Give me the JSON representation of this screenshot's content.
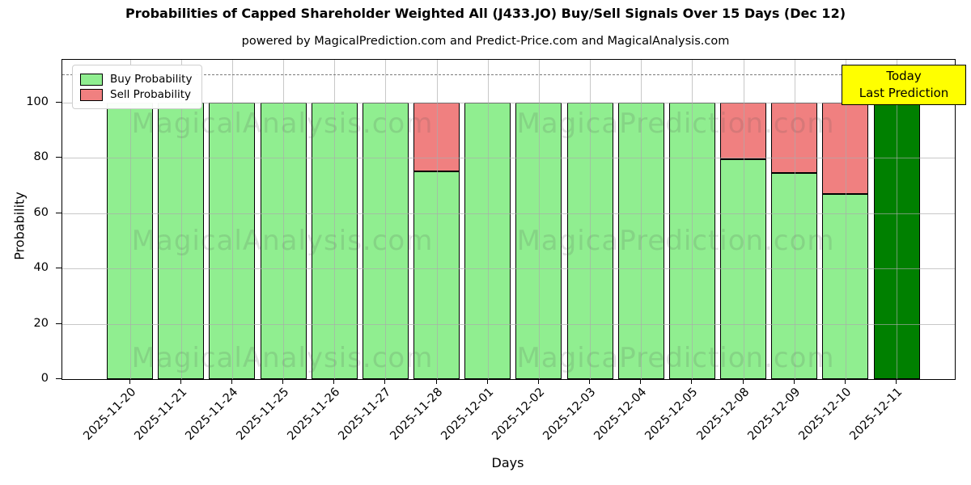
{
  "title": "Probabilities of Capped Shareholder Weighted All (J433.JO) Buy/Sell Signals Over 15 Days (Dec 12)",
  "subtitle": "powered by MagicalPrediction.com and Predict-Price.com and MagicalAnalysis.com",
  "legend": {
    "buy_label": "Buy Probability",
    "sell_label": "Sell Probability"
  },
  "annotation": {
    "line1": "Today",
    "line2": "Last Prediction",
    "background": "#ffff00"
  },
  "watermarks": [
    "MagicalAnalysis.com",
    "MagicaPrediction.com"
  ],
  "colors": {
    "buy": "#90EE90",
    "sell": "#F08080",
    "today_bar": "#008000",
    "grid": "#aaaaaa",
    "dashed_line": "#7a7a7a"
  },
  "chart_data": {
    "type": "bar",
    "stacked": true,
    "title": "Probabilities of Capped Shareholder Weighted All (J433.JO) Buy/Sell Signals Over 15 Days (Dec 12)",
    "xlabel": "Days",
    "ylabel": "Probability",
    "ylim": [
      0,
      115.4
    ],
    "yticks": [
      0,
      20,
      40,
      60,
      80,
      100
    ],
    "grid": true,
    "legend_position": "upper left",
    "dashed_threshold_y": 110,
    "categories": [
      "2025-11-20",
      "2025-11-21",
      "2025-11-24",
      "2025-11-25",
      "2025-11-26",
      "2025-11-27",
      "2025-11-28",
      "2025-12-01",
      "2025-12-02",
      "2025-12-03",
      "2025-12-04",
      "2025-12-05",
      "2025-12-08",
      "2025-12-09",
      "2025-12-10",
      "2025-12-11"
    ],
    "series": [
      {
        "name": "Buy Probability",
        "color": "#90EE90",
        "values": [
          100,
          100,
          100,
          100,
          100,
          100,
          75,
          100,
          100,
          100,
          100,
          100,
          79.5,
          74.5,
          67,
          100
        ]
      },
      {
        "name": "Sell Probability",
        "color": "#F08080",
        "values": [
          0,
          0,
          0,
          0,
          0,
          0,
          25,
          0,
          0,
          0,
          0,
          0,
          20.5,
          25.5,
          33,
          0
        ]
      }
    ],
    "today_bar": {
      "index": 15,
      "color": "#008000",
      "label": "Today / Last Prediction"
    }
  }
}
